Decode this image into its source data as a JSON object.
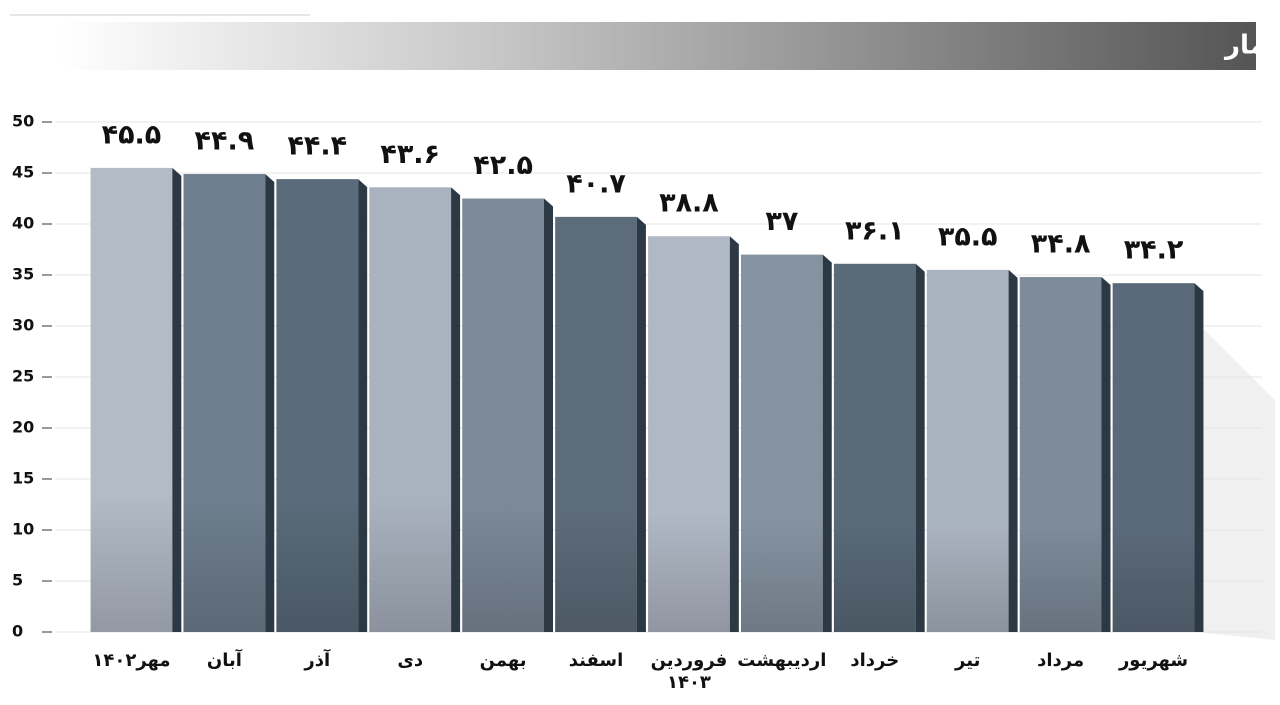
{
  "chart_data": {
    "type": "bar",
    "title": "نرخ تورم(درصد) منبع: مرکز آمار",
    "categories": [
      "مهر۱۴۰۲",
      "آبان",
      "آذر",
      "دی",
      "بهمن",
      "اسفند",
      "فروردین ۱۴۰۳",
      "اردیبهشت",
      "خرداد",
      "تیر",
      "مرداد",
      "شهریور"
    ],
    "values": [
      45.5,
      44.9,
      44.4,
      43.6,
      42.5,
      40.7,
      38.8,
      37,
      36.1,
      35.5,
      34.8,
      34.2
    ],
    "value_labels": [
      "۴۵.۵",
      "۴۴.۹",
      "۴۴.۴",
      "۴۳.۶",
      "۴۲.۵",
      "۴۰.۷",
      "۳۸.۸",
      "۳۷",
      "۳۶.۱",
      "۳۵.۵",
      "۳۴.۸",
      "۳۴.۲"
    ],
    "colors": [
      "#b3bbc7",
      "#6f7f8f",
      "#5a6b7b",
      "#a9b2bf",
      "#7c8a99",
      "#5d6c7b",
      "#b0b8c5",
      "#8593a1",
      "#5a6a79",
      "#aab3c0",
      "#7d8b9a",
      "#5b6a7a"
    ],
    "ylim": [
      0,
      50
    ],
    "yticks": [
      0,
      5,
      10,
      15,
      20,
      25,
      30,
      35,
      40,
      45,
      50
    ],
    "grid": true
  }
}
